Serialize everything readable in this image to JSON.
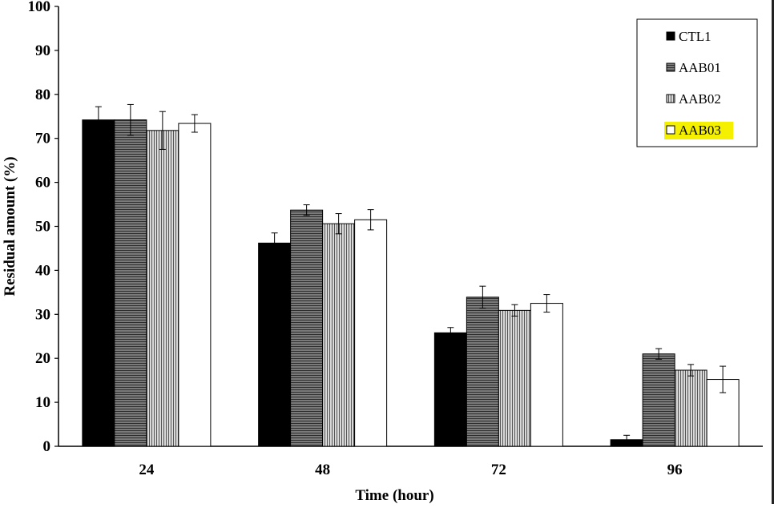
{
  "chart_data": {
    "type": "bar",
    "title": "",
    "xlabel": "Time (hour)",
    "ylabel": "Residual amount (%)",
    "ylim": [
      0,
      100
    ],
    "yticks": [
      0,
      10,
      20,
      30,
      40,
      50,
      60,
      70,
      80,
      90,
      100
    ],
    "categories": [
      "24",
      "48",
      "72",
      "96"
    ],
    "series": [
      {
        "name": "CTL1",
        "fill": "solid-black",
        "values": [
          74.2,
          46.2,
          25.8,
          1.5
        ],
        "errors": [
          3.0,
          2.3,
          1.2,
          1.0
        ]
      },
      {
        "name": "AAB01",
        "fill": "horizontal-stripes",
        "values": [
          74.2,
          53.7,
          33.9,
          21.0
        ],
        "errors": [
          3.5,
          1.2,
          2.5,
          1.2
        ]
      },
      {
        "name": "AAB02",
        "fill": "vertical-stripes",
        "values": [
          71.8,
          50.6,
          30.9,
          17.3
        ],
        "errors": [
          4.3,
          2.3,
          1.3,
          1.3
        ]
      },
      {
        "name": "AAB03",
        "fill": "white",
        "values": [
          73.4,
          51.5,
          32.5,
          15.2
        ],
        "errors": [
          2.0,
          2.3,
          2.0,
          3.0
        ]
      }
    ],
    "grid": false,
    "legend": {
      "position": "top-right",
      "highlighted_entry": "AAB03",
      "highlight_color": "#f4f000"
    }
  }
}
